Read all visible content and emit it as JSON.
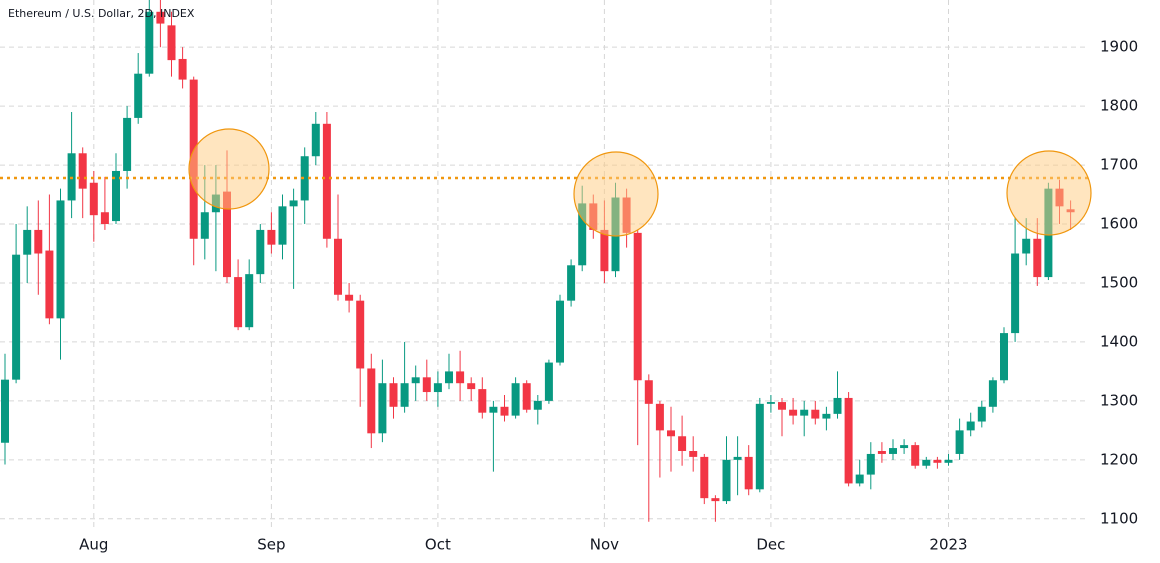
{
  "chart_data": {
    "type": "candlestick",
    "title": "Ethereum / U.S. Dollar, 2D, INDEX",
    "categories": [
      null,
      null,
      null,
      null,
      null,
      null,
      null,
      null,
      "Aug",
      null,
      null,
      null,
      null,
      null,
      null,
      null,
      null,
      null,
      null,
      null,
      null,
      null,
      null,
      null,
      "Sep",
      null,
      null,
      null,
      null,
      null,
      null,
      null,
      null,
      null,
      null,
      null,
      null,
      null,
      null,
      "Oct",
      null,
      null,
      null,
      null,
      null,
      null,
      null,
      null,
      null,
      null,
      null,
      null,
      null,
      null,
      "Nov",
      null,
      null,
      null,
      null,
      null,
      null,
      null,
      null,
      null,
      null,
      null,
      null,
      null,
      null,
      "Dec",
      null,
      null,
      null,
      null,
      null,
      null,
      null,
      null,
      null,
      null,
      null,
      null,
      null,
      null,
      null,
      "2023",
      null,
      null,
      null,
      null,
      null,
      null,
      null,
      null,
      null,
      null,
      null
    ],
    "open": [
      1229,
      1336,
      1548,
      1590,
      1555,
      1440,
      1640,
      1720,
      1670,
      1620,
      1605,
      1690,
      1780,
      1855,
      1960,
      1937,
      1880,
      1845,
      1575,
      1620,
      1655,
      1510,
      1425,
      1515,
      1590,
      1565,
      1630,
      1640,
      1715,
      1770,
      1575,
      1480,
      1470,
      1355,
      1245,
      1330,
      1290,
      1330,
      1340,
      1315,
      1330,
      1350,
      1330,
      1320,
      1280,
      1290,
      1275,
      1330,
      1285,
      1300,
      1365,
      1470,
      1530,
      1635,
      1590,
      1520,
      1645,
      1585,
      1335,
      1295,
      1250,
      1240,
      1215,
      1205,
      1135,
      1130,
      1200,
      1205,
      1150,
      1295,
      1298,
      1285,
      1275,
      1285,
      1270,
      1278,
      1305,
      1160,
      1175,
      1215,
      1210,
      1220,
      1225,
      1190,
      1200,
      1195,
      1210,
      1250,
      1265,
      1290,
      1335,
      1415,
      1550,
      1575,
      1510,
      1660,
      1625
    ],
    "high": [
      1380,
      1600,
      1630,
      1640,
      1650,
      1660,
      1790,
      1730,
      1690,
      1680,
      1720,
      1800,
      1890,
      1990,
      1985,
      1960,
      1900,
      1850,
      1700,
      1700,
      1725,
      1540,
      1540,
      1600,
      1620,
      1650,
      1660,
      1730,
      1790,
      1790,
      1650,
      1500,
      1480,
      1380,
      1370,
      1340,
      1400,
      1360,
      1370,
      1350,
      1380,
      1385,
      1340,
      1340,
      1300,
      1310,
      1340,
      1335,
      1310,
      1370,
      1480,
      1540,
      1665,
      1650,
      1640,
      1670,
      1660,
      1590,
      1345,
      1300,
      1290,
      1275,
      1240,
      1210,
      1140,
      1240,
      1240,
      1225,
      1305,
      1310,
      1305,
      1305,
      1300,
      1300,
      1290,
      1350,
      1315,
      1200,
      1230,
      1230,
      1235,
      1235,
      1230,
      1205,
      1205,
      1210,
      1270,
      1280,
      1300,
      1340,
      1425,
      1610,
      1610,
      1610,
      1670,
      1675,
      1640
    ],
    "low": [
      1192,
      1330,
      1500,
      1480,
      1430,
      1370,
      1610,
      1610,
      1570,
      1590,
      1600,
      1660,
      1770,
      1850,
      1900,
      1850,
      1830,
      1530,
      1540,
      1520,
      1500,
      1420,
      1420,
      1500,
      1550,
      1540,
      1490,
      1600,
      1700,
      1560,
      1470,
      1450,
      1290,
      1220,
      1230,
      1270,
      1280,
      1300,
      1300,
      1290,
      1320,
      1300,
      1300,
      1270,
      1180,
      1265,
      1270,
      1280,
      1260,
      1295,
      1360,
      1460,
      1520,
      1575,
      1500,
      1510,
      1560,
      1225,
      1095,
      1170,
      1180,
      1190,
      1180,
      1125,
      1095,
      1125,
      1140,
      1140,
      1145,
      1280,
      1240,
      1260,
      1240,
      1260,
      1250,
      1270,
      1155,
      1155,
      1150,
      1195,
      1200,
      1210,
      1185,
      1185,
      1185,
      1190,
      1200,
      1240,
      1255,
      1280,
      1330,
      1400,
      1530,
      1495,
      1505,
      1600,
      1590
    ],
    "close": [
      1336,
      1548,
      1590,
      1550,
      1440,
      1640,
      1720,
      1660,
      1615,
      1600,
      1690,
      1780,
      1855,
      1960,
      1940,
      1878,
      1845,
      1575,
      1620,
      1650,
      1510,
      1425,
      1515,
      1590,
      1565,
      1630,
      1640,
      1715,
      1770,
      1575,
      1480,
      1470,
      1355,
      1245,
      1330,
      1290,
      1330,
      1340,
      1315,
      1330,
      1350,
      1330,
      1320,
      1280,
      1290,
      1275,
      1330,
      1285,
      1300,
      1365,
      1470,
      1530,
      1635,
      1590,
      1520,
      1645,
      1585,
      1335,
      1295,
      1250,
      1240,
      1215,
      1205,
      1135,
      1130,
      1200,
      1205,
      1150,
      1295,
      1298,
      1285,
      1275,
      1285,
      1270,
      1278,
      1305,
      1160,
      1175,
      1210,
      1210,
      1220,
      1225,
      1190,
      1200,
      1195,
      1200,
      1250,
      1265,
      1290,
      1335,
      1415,
      1550,
      1575,
      1510,
      1660,
      1630,
      1620
    ],
    "up_color": "#089981",
    "down_color": "#f23645",
    "hline": 1678,
    "hline_color": "#f0970f",
    "ylim": [
      1081,
      1980
    ],
    "yticks": [
      1100,
      1200,
      1300,
      1400,
      1500,
      1600,
      1700,
      1800,
      1900
    ],
    "grid": true
  }
}
